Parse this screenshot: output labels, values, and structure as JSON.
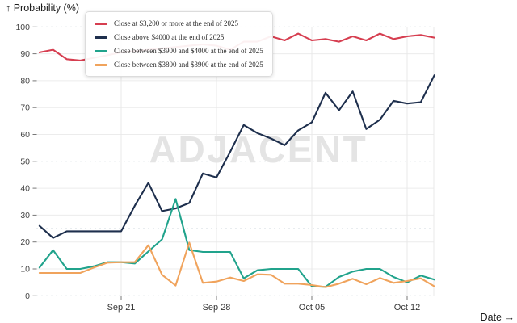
{
  "header": {
    "y_axis_title": "↑ Probability (%)",
    "x_axis_title": "Date →"
  },
  "watermark": {
    "text": "ADJACENT"
  },
  "chart_data": {
    "type": "line",
    "title": "",
    "xlabel": "Date",
    "ylabel": "Probability (%)",
    "ylim": [
      0,
      100
    ],
    "grid": true,
    "legend_position": "top-left",
    "x": [
      "Sep 15",
      "Sep 16",
      "Sep 17",
      "Sep 18",
      "Sep 19",
      "Sep 20",
      "Sep 21",
      "Sep 22",
      "Sep 23",
      "Sep 24",
      "Sep 25",
      "Sep 26",
      "Sep 27",
      "Sep 28",
      "Sep 29",
      "Sep 30",
      "Oct 01",
      "Oct 02",
      "Oct 03",
      "Oct 04",
      "Oct 05",
      "Oct 06",
      "Oct 07",
      "Oct 08",
      "Oct 09",
      "Oct 10",
      "Oct 11",
      "Oct 12",
      "Oct 13",
      "Oct 14"
    ],
    "xticks": [
      "Sep 21",
      "Sep 28",
      "Oct 05",
      "Oct 12"
    ],
    "yticks": [
      0,
      10,
      20,
      30,
      40,
      50,
      60,
      70,
      80,
      90,
      100
    ],
    "ygrid_dashed": [
      0,
      25,
      50,
      75,
      100
    ],
    "series": [
      {
        "name": "Close at $3,200 or more at the end of 2025",
        "color": "#d63e50",
        "values": [
          90.5,
          91.5,
          88,
          87.5,
          88.5,
          89.5,
          90.5,
          91,
          91.5,
          92,
          92.5,
          93,
          93.5,
          93,
          91.5,
          94.5,
          94.5,
          96.5,
          95,
          97.5,
          95,
          95.5,
          94.5,
          96.5,
          95,
          97.5,
          95.5,
          96.5,
          97,
          96
        ]
      },
      {
        "name": "Close above $4000 at the end of 2025",
        "color": "#1e2f4d",
        "values": [
          26,
          21.5,
          24,
          24,
          24,
          24,
          24,
          33.5,
          42,
          31.5,
          32.5,
          34.5,
          45.5,
          44,
          53.5,
          63.5,
          60.5,
          58.5,
          56,
          61.5,
          64.5,
          75.5,
          69,
          76,
          62,
          65.5,
          72.5,
          71.5,
          72,
          82
        ]
      },
      {
        "name": "Close between $3900 and $4000 at the end of 2025",
        "color": "#21a38c",
        "values": [
          10.5,
          17,
          10,
          10,
          11,
          12.5,
          12.5,
          12,
          16.5,
          21,
          36,
          17,
          16.3,
          16.3,
          16.3,
          6.5,
          9.5,
          10,
          10,
          10,
          3.5,
          3.3,
          7,
          9,
          10,
          10,
          7,
          5,
          7.5,
          6
        ]
      },
      {
        "name": "Close between $3800 and $3900 at the end of 2025",
        "color": "#f0a35c",
        "values": [
          8.5,
          8.5,
          8.5,
          8.5,
          10.5,
          12.3,
          12.5,
          12.5,
          18.8,
          7.8,
          3.8,
          19.8,
          4.8,
          5.3,
          6.8,
          5.5,
          8,
          7.8,
          4.5,
          4.5,
          4,
          3.2,
          4.5,
          6.3,
          4.3,
          6.6,
          4.8,
          5.5,
          6.5,
          3.5
        ]
      }
    ],
    "style": {
      "grid_solid_color": "#ececec",
      "grid_dashed_color": "#d2d9df",
      "grid_vertical_color": "#e8e8e8",
      "tick_color": "#777777"
    }
  }
}
